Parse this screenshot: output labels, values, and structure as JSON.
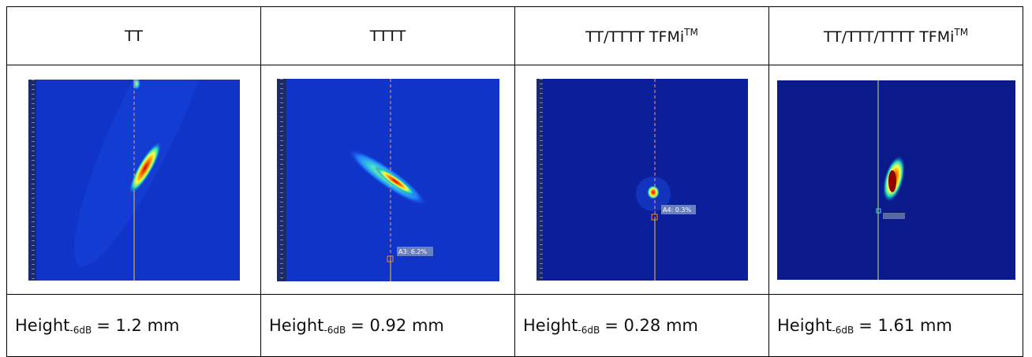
{
  "table": {
    "header": [
      {
        "text": "TT"
      },
      {
        "text": "TTTT"
      },
      {
        "text": "TT/TTTT TFMi",
        "sup": "TM"
      },
      {
        "text": "TT/TTT/TTTT TFMi",
        "sup": "TM"
      }
    ],
    "images": [
      {
        "cursor_label": null
      },
      {
        "cursor_label": "A3: 6.2%"
      },
      {
        "cursor_label": "A4: 0.3%"
      },
      {
        "cursor_label": null
      }
    ],
    "results": [
      {
        "label": "Height",
        "sub": "-6dB",
        "value": "= 1.2 mm"
      },
      {
        "label": "Height",
        "sub": "-6dB",
        "value": "= 0.92 mm"
      },
      {
        "label": "Height",
        "sub": "-6dB",
        "value": "= 0.28 mm"
      },
      {
        "label": "Height",
        "sub": "-6dB",
        "value": "= 1.61 mm"
      }
    ]
  }
}
